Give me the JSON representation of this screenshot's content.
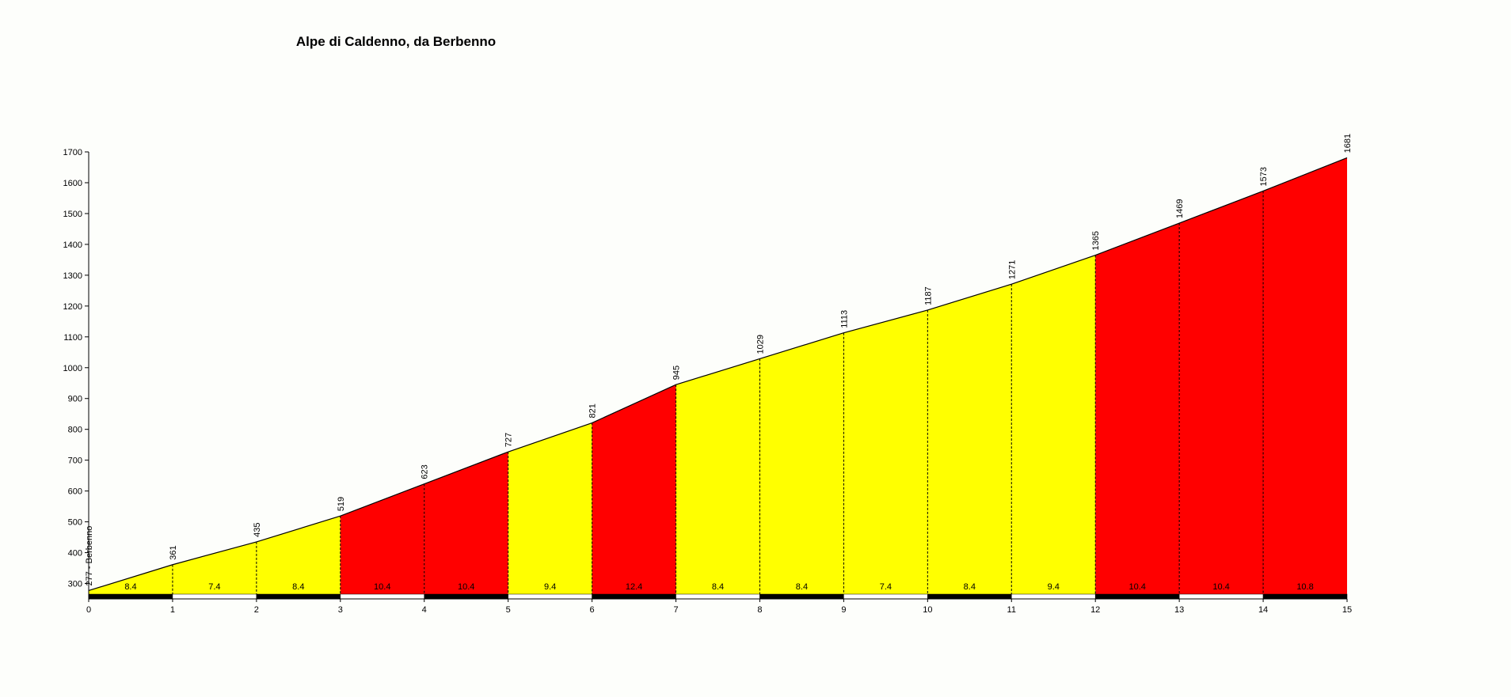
{
  "chart_data": {
    "type": "area",
    "title": "Alpe di Caldenno, da Berbenno",
    "x": [
      0,
      1,
      2,
      3,
      4,
      5,
      6,
      7,
      8,
      9,
      10,
      11,
      12,
      13,
      14,
      15
    ],
    "xlim": [
      0,
      15
    ],
    "xticks": [
      0,
      1,
      2,
      3,
      4,
      5,
      6,
      7,
      8,
      9,
      10,
      11,
      12,
      13,
      14,
      15
    ],
    "ylim": [
      250,
      1700
    ],
    "yticks": [
      300,
      400,
      500,
      600,
      700,
      800,
      900,
      1000,
      1100,
      1200,
      1300,
      1400,
      1500,
      1600,
      1700
    ],
    "series": [
      {
        "color": "#000000",
        "values": [
          277,
          361,
          435,
          519,
          623,
          727,
          821,
          945,
          1029,
          1113,
          1187,
          1271,
          1365,
          1469,
          1573,
          1681
        ],
        "value_labels": [
          "277 - Berbenno",
          "361",
          "435",
          "519",
          "623",
          "727",
          "821",
          "945",
          "1029",
          "1113",
          "1187",
          "1271",
          "1365",
          "1469",
          "1573",
          "1681"
        ]
      }
    ],
    "gradients": {
      "values": [
        8.4,
        7.4,
        8.4,
        10.4,
        10.4,
        9.4,
        12.4,
        8.4,
        8.4,
        7.4,
        8.4,
        9.4,
        10.4,
        10.4,
        10.8
      ],
      "colors": [
        "#ffff00",
        "#ffff00",
        "#ffff00",
        "#ff0000",
        "#ff0000",
        "#ffff00",
        "#ff0000",
        "#ffff00",
        "#ffff00",
        "#ffff00",
        "#ffff00",
        "#ffff00",
        "#ff0000",
        "#ff0000",
        "#ff0000"
      ]
    }
  }
}
